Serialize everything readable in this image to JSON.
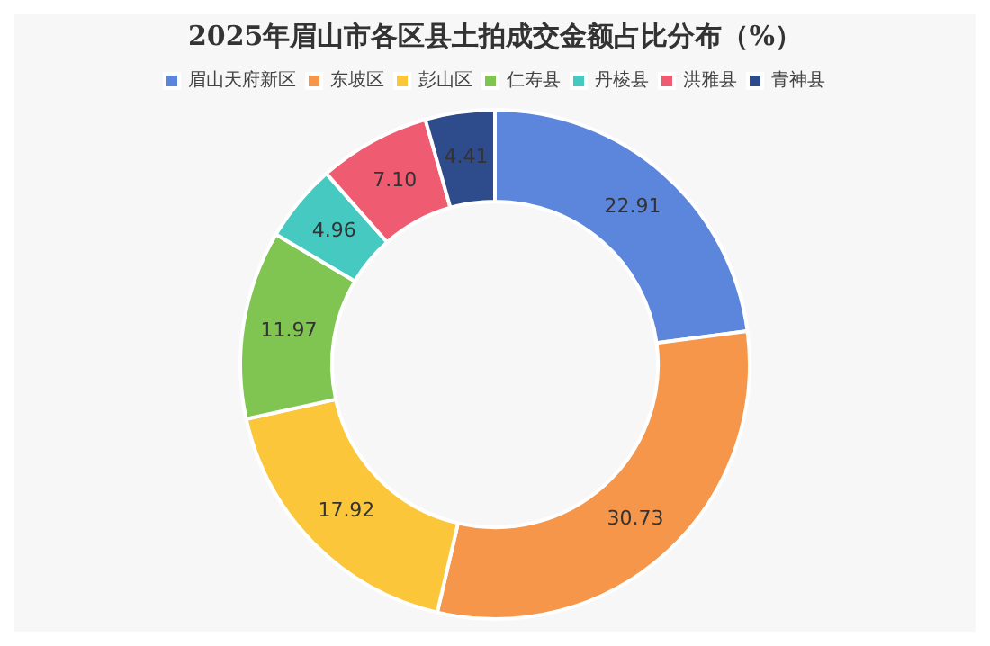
{
  "chart_data": {
    "type": "donut",
    "title": "2025年眉山市各区县土拍成交金额占比分布（%）",
    "categories": [
      "眉山天府新区",
      "东坡区",
      "彭山区",
      "仁寿县",
      "丹棱县",
      "洪雅县",
      "青神县"
    ],
    "values": [
      22.91,
      30.73,
      17.92,
      11.97,
      4.96,
      7.1,
      4.41
    ],
    "colors": [
      "#5b86dc",
      "#f5964a",
      "#fcc63a",
      "#80c452",
      "#45c9c0",
      "#ef5b70",
      "#2e4b8c"
    ],
    "value_labels": [
      "22.91",
      "30.73",
      "17.92",
      "11.97",
      "4.96",
      "7.10",
      "4.41"
    ],
    "legend": "top"
  }
}
